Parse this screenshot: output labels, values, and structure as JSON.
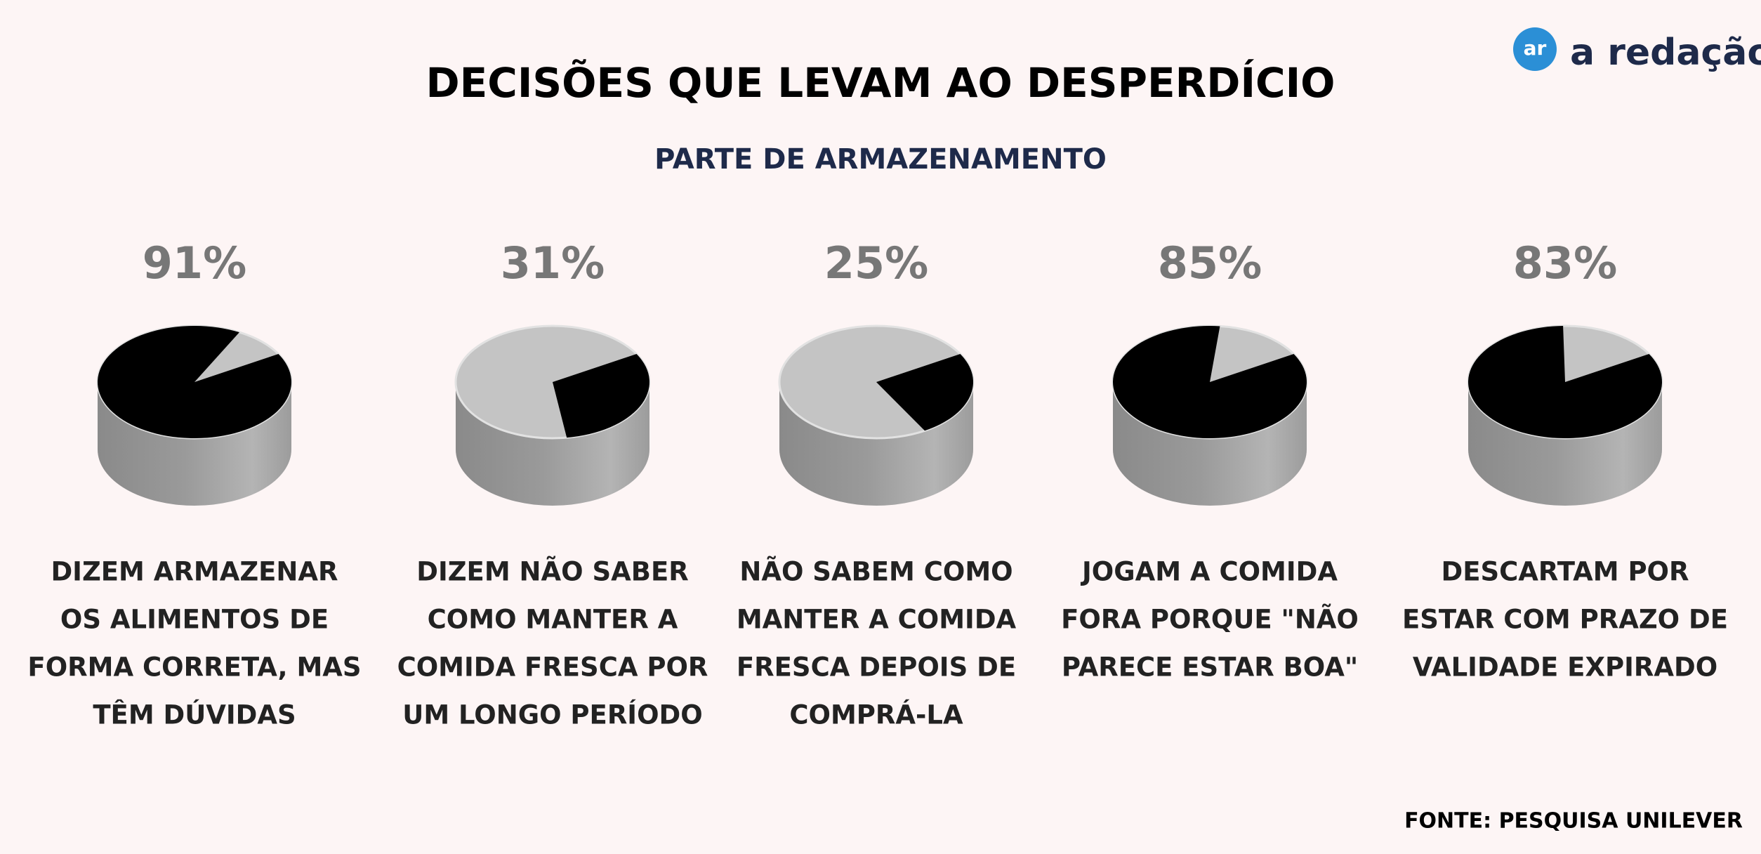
{
  "title": "DECISÕES QUE LEVAM AO DESPERDÍCIO",
  "subtitle": "PARTE DE ARMAZENAMENTO",
  "source": "FONTE: PESQUISA UNILEVER",
  "logo": {
    "mark": "ar",
    "text": "a redação"
  },
  "chart_data": [
    {
      "type": "pie",
      "values": [
        91
      ],
      "value_labels": [
        "91%"
      ],
      "color": "#000000",
      "label": [
        "DIZEM ARMAZENAR",
        "OS ALIMENTOS DE",
        "FORMA CORRETA, MAS",
        "TÊM DÚVIDAS"
      ]
    },
    {
      "type": "pie",
      "values": [
        31
      ],
      "value_labels": [
        "31%"
      ],
      "color": "#000000",
      "label": [
        "DIZEM NÃO SABER",
        "COMO MANTER A",
        "COMIDA FRESCA POR",
        "UM LONGO PERÍODO"
      ]
    },
    {
      "type": "pie",
      "values": [
        25
      ],
      "value_labels": [
        "25%"
      ],
      "color": "#000000",
      "label": [
        "NÃO SABEM COMO",
        "MANTER A COMIDA",
        "FRESCA DEPOIS DE",
        "COMPRÁ-LA"
      ]
    },
    {
      "type": "pie",
      "values": [
        85
      ],
      "value_labels": [
        "85%"
      ],
      "color": "#000000",
      "label": [
        "JOGAM A COMIDA",
        "FORA PORQUE \"NÃO",
        "PARECE ESTAR BOA\""
      ]
    },
    {
      "type": "pie",
      "values": [
        83
      ],
      "value_labels": [
        "83%"
      ],
      "color": "#000000",
      "label": [
        "DESCARTAM POR",
        "ESTAR COM PRAZO DE",
        "VALIDADE EXPIRADO"
      ]
    }
  ]
}
